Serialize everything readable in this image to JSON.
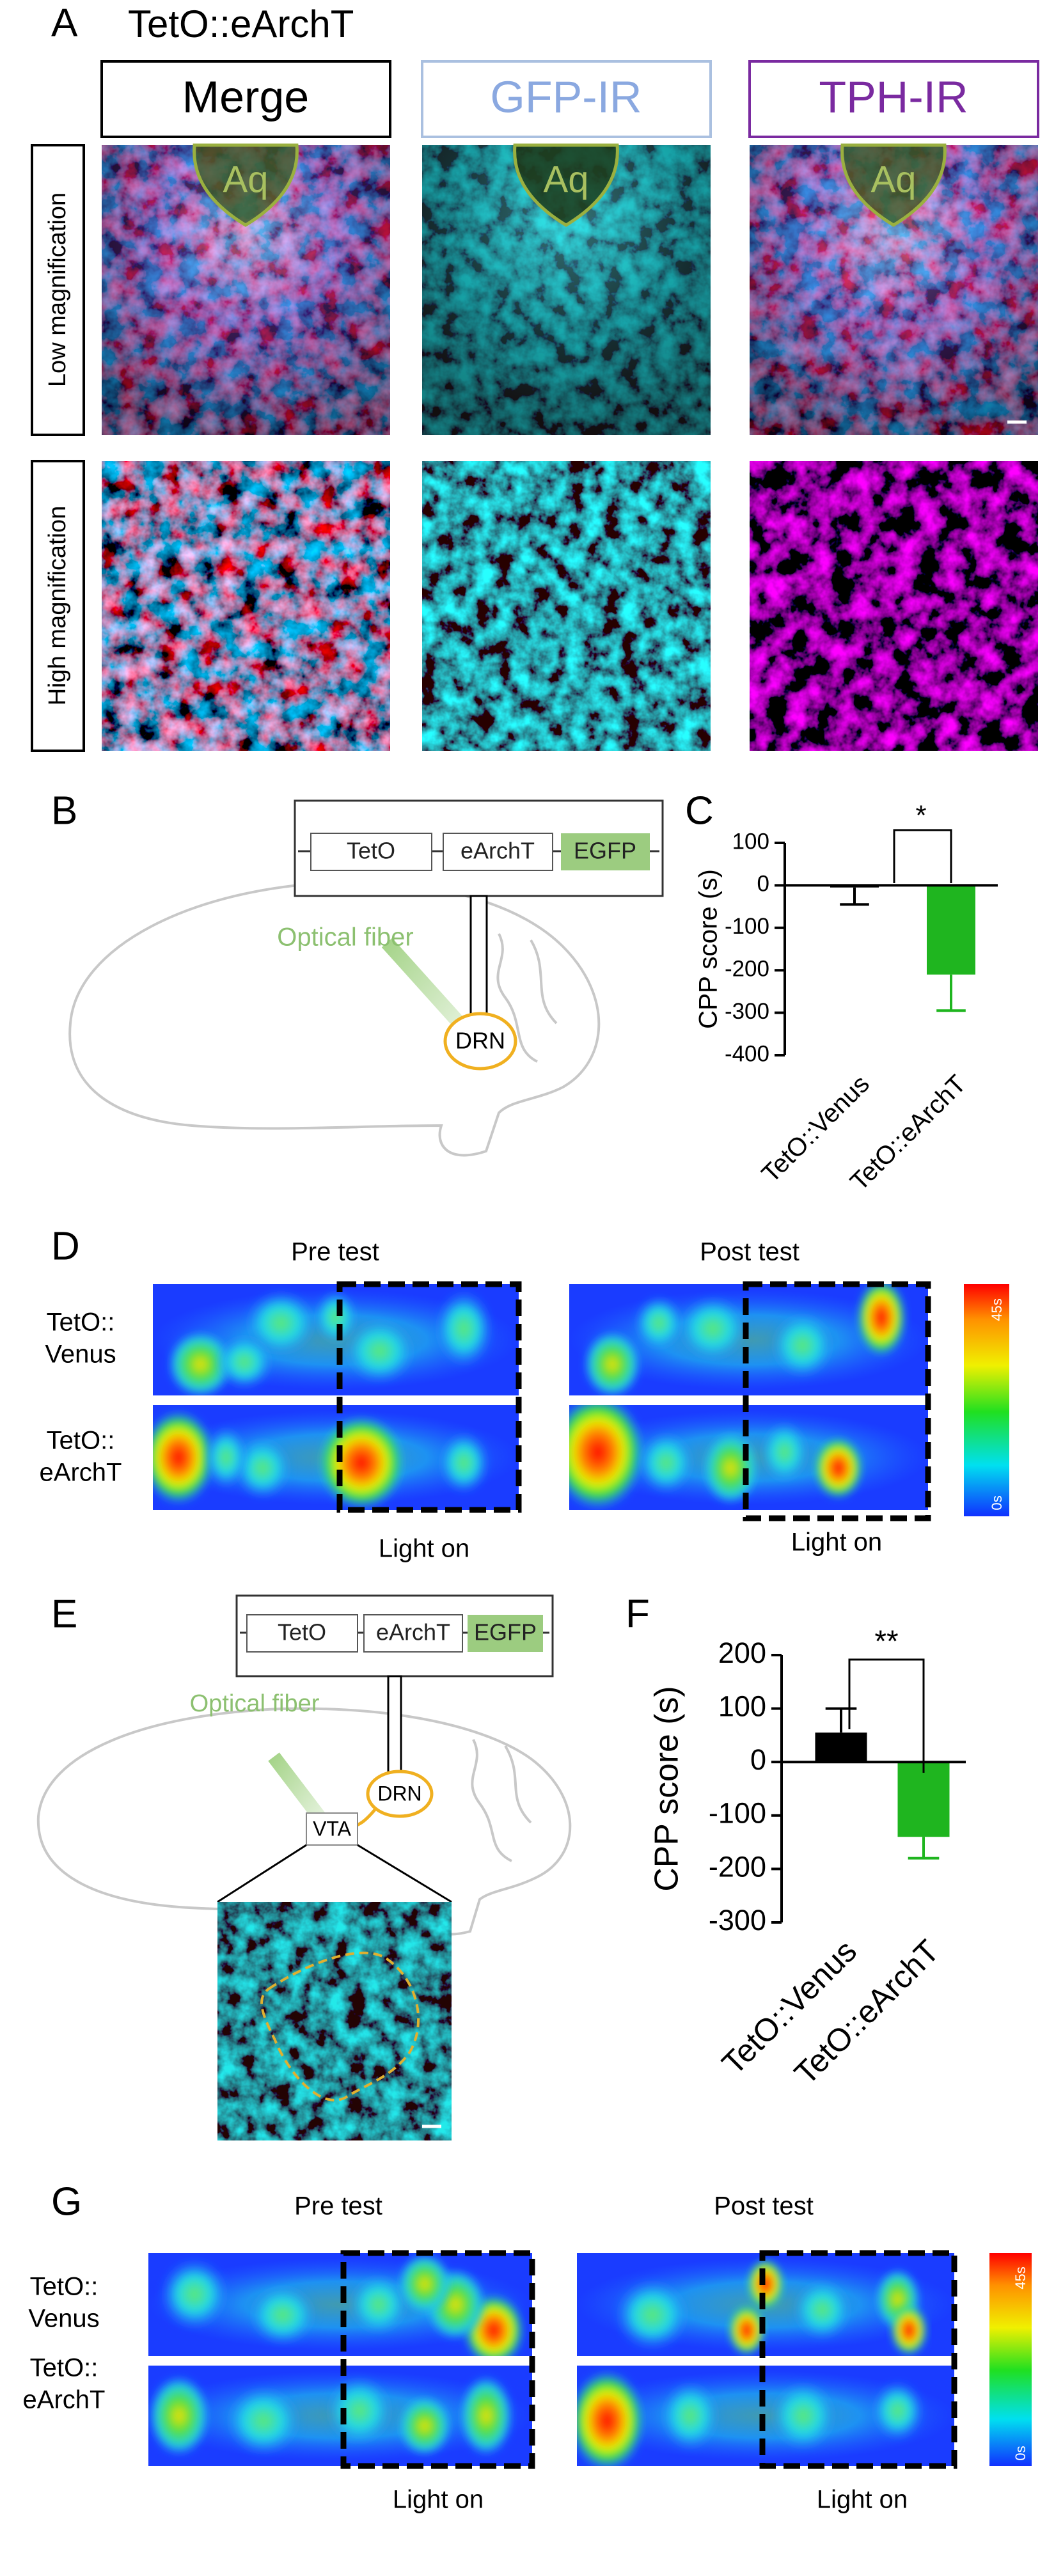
{
  "panel_labels": [
    "A",
    "B",
    "C",
    "D",
    "E",
    "F",
    "G"
  ],
  "panel_a": {
    "title": "TetO::eArchT",
    "columns": [
      "Merge",
      "GFP-IR",
      "TPH-IR"
    ],
    "rows": [
      "Low magnification",
      "High magnification"
    ],
    "region_label": "Aq"
  },
  "panel_b": {
    "construct": [
      "TetO",
      "eArchT",
      "EGFP"
    ],
    "fiber_label": "Optical fiber",
    "region": "DRN"
  },
  "panel_d": {
    "headers": [
      "Pre test",
      "Post test"
    ],
    "row_labels": [
      [
        "TetO::",
        "Venus"
      ],
      [
        "TetO::",
        "eArchT"
      ]
    ],
    "light_label": "Light on",
    "colorbar_labels": [
      "45s",
      "0s"
    ]
  },
  "panel_e": {
    "construct": [
      "TetO",
      "eArchT",
      "EGFP"
    ],
    "fiber_label": "Optical fiber",
    "regions": [
      "VTA",
      "DRN"
    ]
  },
  "panel_g": {
    "headers": [
      "Pre test",
      "Post test"
    ],
    "row_labels": [
      [
        "TetO::",
        "Venus"
      ],
      [
        "TetO::",
        "eArchT"
      ]
    ],
    "light_label": "Light on",
    "colorbar_labels": [
      "45s",
      "0s"
    ]
  },
  "chart_data": [
    {
      "type": "bar",
      "ylabel": "CPP score (s)",
      "categories": [
        "TetO::Venus",
        "TetO::eArchT"
      ],
      "values": [
        -5,
        -210
      ],
      "errors": [
        40,
        85
      ],
      "colors": [
        "#000000",
        "#1fb51f"
      ],
      "ylim": [
        -400,
        100
      ],
      "yticks": [
        -400,
        -300,
        -200,
        -100,
        0,
        100
      ],
      "significance": "*"
    },
    {
      "type": "bar",
      "ylabel": "CPP score (s)",
      "categories": [
        "TetO::Venus",
        "TetO::eArchT"
      ],
      "values": [
        55,
        -140
      ],
      "errors": [
        45,
        40
      ],
      "colors": [
        "#000000",
        "#1fb51f"
      ],
      "ylim": [
        -300,
        200
      ],
      "yticks": [
        -300,
        -200,
        -100,
        0,
        100,
        200
      ],
      "significance": "**"
    }
  ]
}
